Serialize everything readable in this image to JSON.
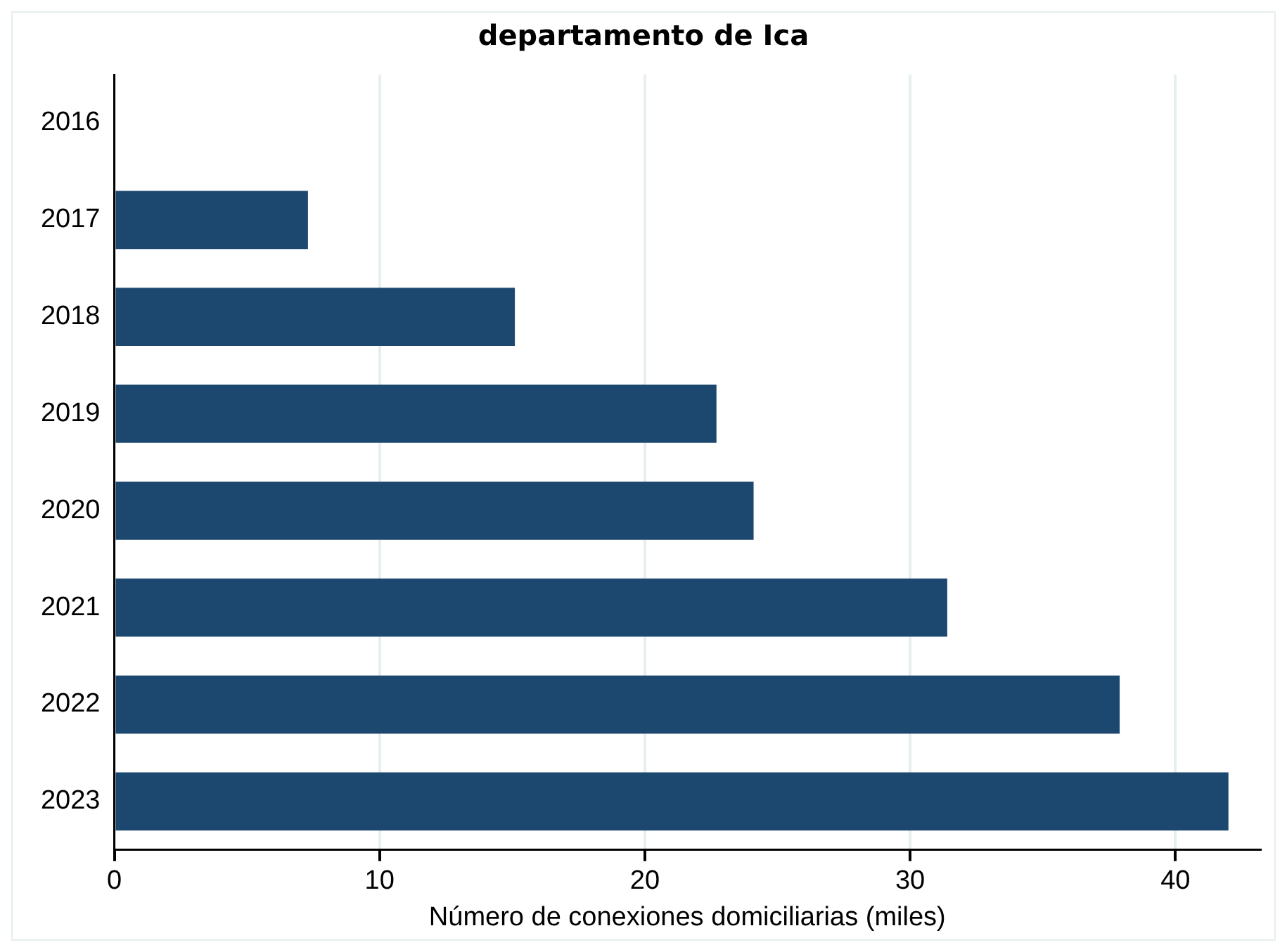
{
  "chart_data": {
    "type": "bar",
    "orientation": "horizontal",
    "title": "departamento de Ica",
    "xlabel": "Número de conexiones domiciliarias (miles)",
    "categories": [
      "2016",
      "2017",
      "2018",
      "2019",
      "2020",
      "2021",
      "2022",
      "2023"
    ],
    "values": [
      0,
      7.3,
      15.1,
      22.7,
      24.1,
      31.4,
      37.9,
      42.0
    ],
    "color": "#1c4870",
    "xlim": [
      0,
      43.2
    ],
    "xticks": [
      0,
      10,
      20,
      30,
      40
    ],
    "grid": "x",
    "legend": false
  }
}
